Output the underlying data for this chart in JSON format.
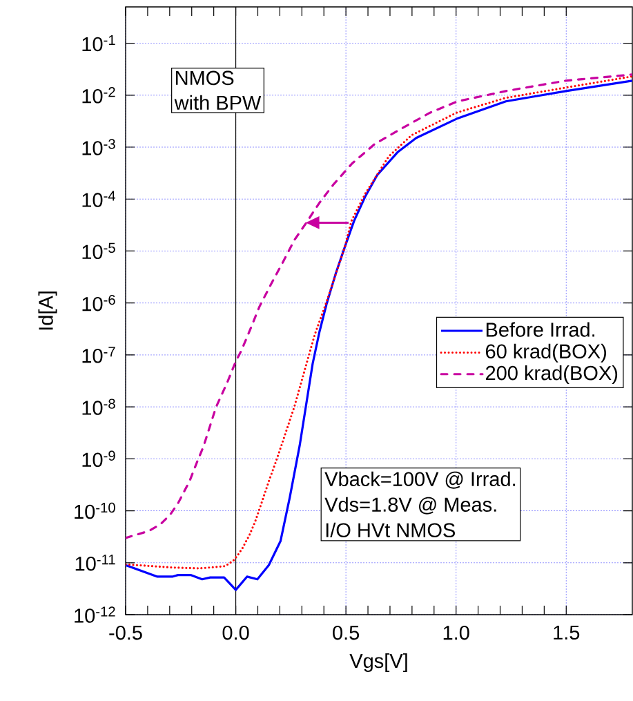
{
  "chart_data": {
    "type": "line",
    "xlabel": "Vgs[V]",
    "ylabel": "Id[A]",
    "xlim": [
      -0.5,
      1.8
    ],
    "ylim": [
      1e-12,
      0.5
    ],
    "log": "y",
    "xticks": [
      {
        "value": -0.5,
        "label": "-0.5"
      },
      {
        "value": 0,
        "label": "0.0"
      },
      {
        "value": 0.5,
        "label": "0.5"
      },
      {
        "value": 1.0,
        "label": "1.0"
      },
      {
        "value": 1.5,
        "label": "1.5"
      }
    ],
    "yticks": [
      {
        "value": 1e-12,
        "label": "10$^{-12}$"
      },
      {
        "value": 1e-11,
        "label": "10$^{-11}$"
      },
      {
        "value": 1e-10,
        "label": "10$^{-10}$"
      },
      {
        "value": 1e-09,
        "label": "10$^{-9}$"
      },
      {
        "value": 1e-08,
        "label": "10$^{-8}$"
      },
      {
        "value": 1e-07,
        "label": "10$^{-7}$"
      },
      {
        "value": 1e-06,
        "label": "10$^{-6}$"
      },
      {
        "value": 1e-05,
        "label": "10$^{-5}$"
      },
      {
        "value": 0.0001,
        "label": "10$^{-4}$"
      },
      {
        "value": 0.001,
        "label": "10$^{-3}$"
      },
      {
        "value": 0.01,
        "label": "10$^{-2}$"
      },
      {
        "value": 0.1,
        "label": "10$^{-1}$"
      }
    ],
    "grid": true,
    "legend": "right",
    "ref_lines": [
      {
        "axis": "x",
        "value": 0,
        "color": "#000000"
      }
    ],
    "annotations": [
      "NMOS",
      "with BPW",
      "Vback=100V @ Irrad.",
      "Vds=1.8V @ Meas.",
      "I/O HVt NMOS"
    ],
    "series": [
      {
        "name": "Before Irrad.",
        "color": "#0000ff",
        "line_style": "solid",
        "x": [
          -0.5,
          -0.356,
          -0.288,
          -0.262,
          -0.205,
          -0.153,
          -0.116,
          -0.053,
          0,
          0.051,
          0.098,
          0.15,
          0.203,
          0.245,
          0.29,
          0.349,
          0.38,
          0.412,
          0.453,
          0.495,
          0.537,
          0.589,
          0.642,
          0.736,
          0.819,
          1.002,
          1.226,
          1.498,
          1.8
        ],
        "values": [
          9e-12,
          5.4e-12,
          5.4e-12,
          5.8e-12,
          5.8e-12,
          4.8e-12,
          5.2e-12,
          5.2e-12,
          3e-12,
          5.4e-12,
          4.8e-12,
          9e-12,
          2.6e-11,
          1.8e-10,
          1.8e-09,
          6.8e-08,
          2.8e-07,
          9.5e-07,
          3.6e-06,
          1.2e-05,
          3.8e-05,
          0.000115,
          0.00029,
          0.00081,
          0.0015,
          0.0035,
          0.0076,
          0.012,
          0.019
        ]
      },
      {
        "name": "60 krad(BOX)",
        "color": "#ff0000",
        "line_style": "dotted",
        "x": [
          -0.5,
          -0.377,
          -0.288,
          -0.163,
          -0.048,
          -0.011,
          0.009,
          0.03,
          0.062,
          0.088,
          0.119,
          0.15,
          0.182,
          0.207,
          0.265,
          0.318,
          0.359,
          0.412,
          0.453,
          0.495,
          0.525,
          0.589,
          0.694,
          0.798,
          1.002,
          1.226,
          1.498,
          1.8
        ],
        "values": [
          9.3e-12,
          8.6e-12,
          8.1e-12,
          7.8e-12,
          8.6e-12,
          1.1e-11,
          1.4e-11,
          1.9e-11,
          3.4e-11,
          6.2e-11,
          1.5e-10,
          3.7e-10,
          8.8e-10,
          1.8e-09,
          9.8e-09,
          6.1e-08,
          2.5e-07,
          1.05e-06,
          3.5e-06,
          1.2e-05,
          3.8e-05,
          0.00013,
          0.00066,
          0.0017,
          0.0046,
          0.0089,
          0.014,
          0.023
        ]
      },
      {
        "name": "200 krad(BOX)",
        "color": "#c800a0",
        "line_style": "dashed",
        "x": [
          -0.5,
          -0.393,
          -0.34,
          -0.298,
          -0.262,
          -0.21,
          -0.173,
          -0.147,
          -0.09,
          -0.038,
          0,
          0.025,
          0.067,
          0.108,
          0.16,
          0.213,
          0.265,
          0.318,
          0.38,
          0.443,
          0.527,
          0.631,
          0.746,
          0.882,
          1.006,
          1.226,
          1.498,
          1.8
        ],
        "values": [
          3e-11,
          4.1e-11,
          5.6e-11,
          8.4e-11,
          1.4e-10,
          3.7e-10,
          9.3e-10,
          1.7e-09,
          9.8e-09,
          3e-08,
          7.5e-08,
          1.2e-07,
          3.2e-07,
          8.6e-07,
          2.3e-06,
          6e-06,
          1.6e-05,
          3.4e-05,
          8.5e-05,
          0.00019,
          0.00048,
          0.00115,
          0.0022,
          0.0046,
          0.0076,
          0.012,
          0.019,
          0.025
        ]
      }
    ]
  }
}
